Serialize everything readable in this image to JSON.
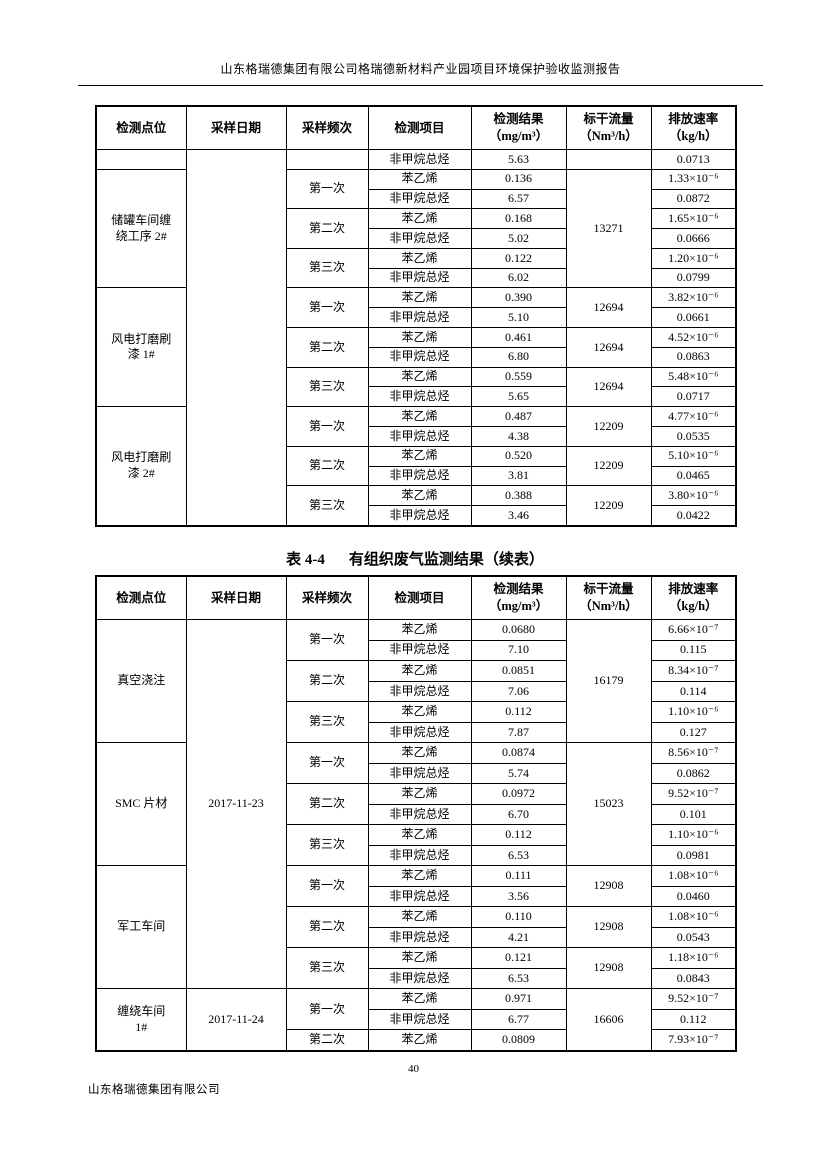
{
  "header": {
    "report_title": "山东格瑞德集团有限公司格瑞德新材料产业园项目环境保护验收监测报告"
  },
  "footer": {
    "page_number": "40",
    "company": "山东格瑞德集团有限公司"
  },
  "columns": [
    "检测点位",
    "采样日期",
    "采样频次",
    "检测项目",
    "检测结果\n（mg/m³）",
    "标干流量\n（Nm³/h）",
    "排放速率\n（kg/h）"
  ],
  "table1": {
    "rows": [
      [
        {
          "v": ""
        },
        {
          "v": "",
          "rs": 19
        },
        {
          "v": ""
        },
        {
          "v": "非甲烷总烃"
        },
        {
          "v": "5.63"
        },
        {
          "v": ""
        },
        {
          "v": "0.0713"
        }
      ],
      [
        {
          "v": "储罐车间缠\n绕工序 2#",
          "rs": 6
        },
        {
          "v": "第一次",
          "rs": 2
        },
        {
          "v": "苯乙烯"
        },
        {
          "v": "0.136"
        },
        {
          "v": "13271",
          "rs": 6
        },
        {
          "v": "1.33×10⁻⁶"
        }
      ],
      [
        {
          "v": "非甲烷总烃"
        },
        {
          "v": "6.57"
        },
        {
          "v": "0.0872"
        }
      ],
      [
        {
          "v": "第二次",
          "rs": 2
        },
        {
          "v": "苯乙烯"
        },
        {
          "v": "0.168"
        },
        {
          "v": "1.65×10⁻⁶"
        }
      ],
      [
        {
          "v": "非甲烷总烃"
        },
        {
          "v": "5.02"
        },
        {
          "v": "0.0666"
        }
      ],
      [
        {
          "v": "第三次",
          "rs": 2
        },
        {
          "v": "苯乙烯"
        },
        {
          "v": "0.122"
        },
        {
          "v": "1.20×10⁻⁶"
        }
      ],
      [
        {
          "v": "非甲烷总烃"
        },
        {
          "v": "6.02"
        },
        {
          "v": "0.0799"
        }
      ],
      [
        {
          "v": "风电打磨刷\n漆 1#",
          "rs": 6
        },
        {
          "v": "第一次",
          "rs": 2
        },
        {
          "v": "苯乙烯"
        },
        {
          "v": "0.390"
        },
        {
          "v": "12694",
          "rs": 2
        },
        {
          "v": "3.82×10⁻⁶"
        }
      ],
      [
        {
          "v": "非甲烷总烃"
        },
        {
          "v": "5.10"
        },
        {
          "v": "0.0661"
        }
      ],
      [
        {
          "v": "第二次",
          "rs": 2
        },
        {
          "v": "苯乙烯"
        },
        {
          "v": "0.461"
        },
        {
          "v": "12694",
          "rs": 2
        },
        {
          "v": "4.52×10⁻⁶"
        }
      ],
      [
        {
          "v": "非甲烷总烃"
        },
        {
          "v": "6.80"
        },
        {
          "v": "0.0863"
        }
      ],
      [
        {
          "v": "第三次",
          "rs": 2
        },
        {
          "v": "苯乙烯"
        },
        {
          "v": "0.559"
        },
        {
          "v": "12694",
          "rs": 2
        },
        {
          "v": "5.48×10⁻⁶"
        }
      ],
      [
        {
          "v": "非甲烷总烃"
        },
        {
          "v": "5.65"
        },
        {
          "v": "0.0717"
        }
      ],
      [
        {
          "v": "风电打磨刷\n漆 2#",
          "rs": 6
        },
        {
          "v": "第一次",
          "rs": 2
        },
        {
          "v": "苯乙烯"
        },
        {
          "v": "0.487"
        },
        {
          "v": "12209",
          "rs": 2
        },
        {
          "v": "4.77×10⁻⁶"
        }
      ],
      [
        {
          "v": "非甲烷总烃"
        },
        {
          "v": "4.38"
        },
        {
          "v": "0.0535"
        }
      ],
      [
        {
          "v": "第二次",
          "rs": 2
        },
        {
          "v": "苯乙烯"
        },
        {
          "v": "0.520"
        },
        {
          "v": "12209",
          "rs": 2
        },
        {
          "v": "5.10×10⁻⁶"
        }
      ],
      [
        {
          "v": "非甲烷总烃"
        },
        {
          "v": "3.81"
        },
        {
          "v": "0.0465"
        }
      ],
      [
        {
          "v": "第三次",
          "rs": 2
        },
        {
          "v": "苯乙烯"
        },
        {
          "v": "0.388"
        },
        {
          "v": "12209",
          "rs": 2
        },
        {
          "v": "3.80×10⁻⁶"
        }
      ],
      [
        {
          "v": "非甲烷总烃"
        },
        {
          "v": "3.46"
        },
        {
          "v": "0.0422"
        }
      ]
    ]
  },
  "table2": {
    "title_label": "表 4-4",
    "title_text": "有组织废气监测结果（续表）",
    "rows": [
      [
        {
          "v": "真空浇注",
          "rs": 6
        },
        {
          "v": "2017-11-23",
          "rs": 18
        },
        {
          "v": "第一次",
          "rs": 2
        },
        {
          "v": "苯乙烯"
        },
        {
          "v": "0.0680"
        },
        {
          "v": "16179",
          "rs": 6
        },
        {
          "v": "6.66×10⁻⁷"
        }
      ],
      [
        {
          "v": "非甲烷总烃"
        },
        {
          "v": "7.10"
        },
        {
          "v": "0.115"
        }
      ],
      [
        {
          "v": "第二次",
          "rs": 2
        },
        {
          "v": "苯乙烯"
        },
        {
          "v": "0.0851"
        },
        {
          "v": "8.34×10⁻⁷"
        }
      ],
      [
        {
          "v": "非甲烷总烃"
        },
        {
          "v": "7.06"
        },
        {
          "v": "0.114"
        }
      ],
      [
        {
          "v": "第三次",
          "rs": 2
        },
        {
          "v": "苯乙烯"
        },
        {
          "v": "0.112"
        },
        {
          "v": "1.10×10⁻⁶"
        }
      ],
      [
        {
          "v": "非甲烷总烃"
        },
        {
          "v": "7.87"
        },
        {
          "v": "0.127"
        }
      ],
      [
        {
          "v": "SMC 片材",
          "rs": 6
        },
        {
          "v": "第一次",
          "rs": 2
        },
        {
          "v": "苯乙烯"
        },
        {
          "v": "0.0874"
        },
        {
          "v": "15023",
          "rs": 6
        },
        {
          "v": "8.56×10⁻⁷"
        }
      ],
      [
        {
          "v": "非甲烷总烃"
        },
        {
          "v": "5.74"
        },
        {
          "v": "0.0862"
        }
      ],
      [
        {
          "v": "第二次",
          "rs": 2
        },
        {
          "v": "苯乙烯"
        },
        {
          "v": "0.0972"
        },
        {
          "v": "9.52×10⁻⁷"
        }
      ],
      [
        {
          "v": "非甲烷总烃"
        },
        {
          "v": "6.70"
        },
        {
          "v": "0.101"
        }
      ],
      [
        {
          "v": "第三次",
          "rs": 2
        },
        {
          "v": "苯乙烯"
        },
        {
          "v": "0.112"
        },
        {
          "v": "1.10×10⁻⁶"
        }
      ],
      [
        {
          "v": "非甲烷总烃"
        },
        {
          "v": "6.53"
        },
        {
          "v": "0.0981"
        }
      ],
      [
        {
          "v": "军工车间",
          "rs": 6
        },
        {
          "v": "第一次",
          "rs": 2
        },
        {
          "v": "苯乙烯"
        },
        {
          "v": "0.111"
        },
        {
          "v": "12908",
          "rs": 2
        },
        {
          "v": "1.08×10⁻⁶"
        }
      ],
      [
        {
          "v": "非甲烷总烃"
        },
        {
          "v": "3.56"
        },
        {
          "v": "0.0460"
        }
      ],
      [
        {
          "v": "第二次",
          "rs": 2
        },
        {
          "v": "苯乙烯"
        },
        {
          "v": "0.110"
        },
        {
          "v": "12908",
          "rs": 2
        },
        {
          "v": "1.08×10⁻⁶"
        }
      ],
      [
        {
          "v": "非甲烷总烃"
        },
        {
          "v": "4.21"
        },
        {
          "v": "0.0543"
        }
      ],
      [
        {
          "v": "第三次",
          "rs": 2
        },
        {
          "v": "苯乙烯"
        },
        {
          "v": "0.121"
        },
        {
          "v": "12908",
          "rs": 2
        },
        {
          "v": "1.18×10⁻⁶"
        }
      ],
      [
        {
          "v": "非甲烷总烃"
        },
        {
          "v": "6.53"
        },
        {
          "v": "0.0843"
        }
      ],
      [
        {
          "v": "缠绕车间\n1#",
          "rs": 3
        },
        {
          "v": "2017-11-24",
          "rs": 3
        },
        {
          "v": "第一次",
          "rs": 2
        },
        {
          "v": "苯乙烯"
        },
        {
          "v": "0.971"
        },
        {
          "v": "16606",
          "rs": 3
        },
        {
          "v": "9.52×10⁻⁷"
        }
      ],
      [
        {
          "v": "非甲烷总烃"
        },
        {
          "v": "6.77"
        },
        {
          "v": "0.112"
        }
      ],
      [
        {
          "v": "第二次"
        },
        {
          "v": "苯乙烯"
        },
        {
          "v": "0.0809"
        },
        {
          "v": "7.93×10⁻⁷"
        }
      ]
    ]
  }
}
